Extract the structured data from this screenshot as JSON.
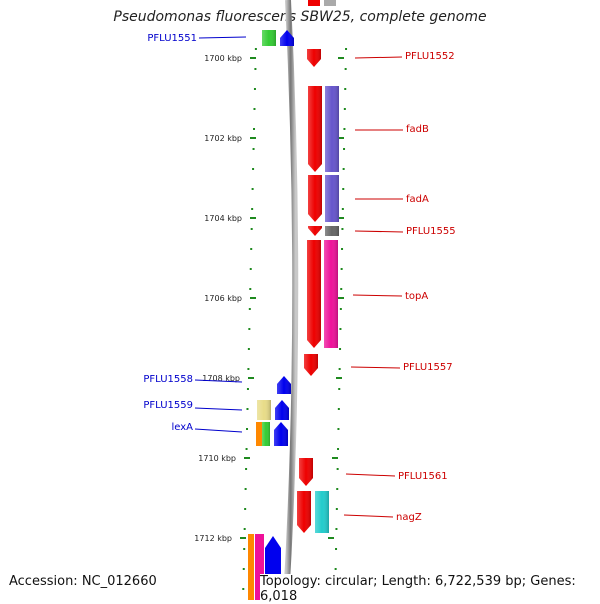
{
  "title": "Pseudomonas fluorescens SBW25, complete genome",
  "footer": {
    "accession": "Accession: NC_012660",
    "topology": "Topology: circular; Length: 6,722,539 bp; Genes: 6,018"
  },
  "colors": {
    "backbone": "#888888",
    "tick": "#1f8a1f",
    "left_label": "#0000cc",
    "right_label": "#cc0000"
  },
  "kbp_ticks": [
    {
      "label": "1700 kbp",
      "kbp": 1700
    },
    {
      "label": "1702 kbp",
      "kbp": 1702
    },
    {
      "label": "1704 kbp",
      "kbp": 1704
    },
    {
      "label": "1706 kbp",
      "kbp": 1706
    },
    {
      "label": "1708 kbp",
      "kbp": 1708
    },
    {
      "label": "1710 kbp",
      "kbp": 1710
    },
    {
      "label": "1712 kbp",
      "kbp": 1712
    }
  ],
  "left_labels": [
    {
      "label": "PFLU1551"
    },
    {
      "label": "PFLU1558"
    },
    {
      "label": "PFLU1559"
    },
    {
      "label": "lexA"
    }
  ],
  "right_labels": [
    {
      "label": "PFLU1552"
    },
    {
      "label": "fadB"
    },
    {
      "label": "fadA"
    },
    {
      "label": "PFLU1555"
    },
    {
      "label": "topA"
    },
    {
      "label": "PFLU1557"
    },
    {
      "label": "PFLU1561"
    },
    {
      "label": "nagZ"
    }
  ],
  "genes": [
    {
      "name": "PFLU1551",
      "strand": "forward",
      "color": "#0000ee",
      "category_color": "#33cc33"
    },
    {
      "name": "PFLU1552",
      "strand": "reverse",
      "color": "#ee0000"
    },
    {
      "name": "fadB",
      "strand": "reverse",
      "color": "#ee0000",
      "category_color": "#6655cc"
    },
    {
      "name": "fadA",
      "strand": "reverse",
      "color": "#ee0000",
      "category_color": "#6655cc"
    },
    {
      "name": "PFLU1555",
      "strand": "reverse",
      "color": "#ee0000",
      "category_color": "#666666"
    },
    {
      "name": "topA",
      "strand": "reverse",
      "color": "#ee0000",
      "category_color": "#ee1199"
    },
    {
      "name": "PFLU1557",
      "strand": "reverse",
      "color": "#ee0000"
    },
    {
      "name": "PFLU1558",
      "strand": "forward",
      "color": "#0000ee"
    },
    {
      "name": "PFLU1559",
      "strand": "forward",
      "color": "#0000ee",
      "category_color": "#e8dc88"
    },
    {
      "name": "lexA",
      "strand": "forward",
      "color": "#0000ee",
      "category_color": "#33cc33",
      "category_color_2": "#ff8800"
    },
    {
      "name": "PFLU1561",
      "strand": "reverse",
      "color": "#ee0000"
    },
    {
      "name": "nagZ",
      "strand": "reverse",
      "color": "#ee0000",
      "category_color": "#22cccc"
    }
  ]
}
